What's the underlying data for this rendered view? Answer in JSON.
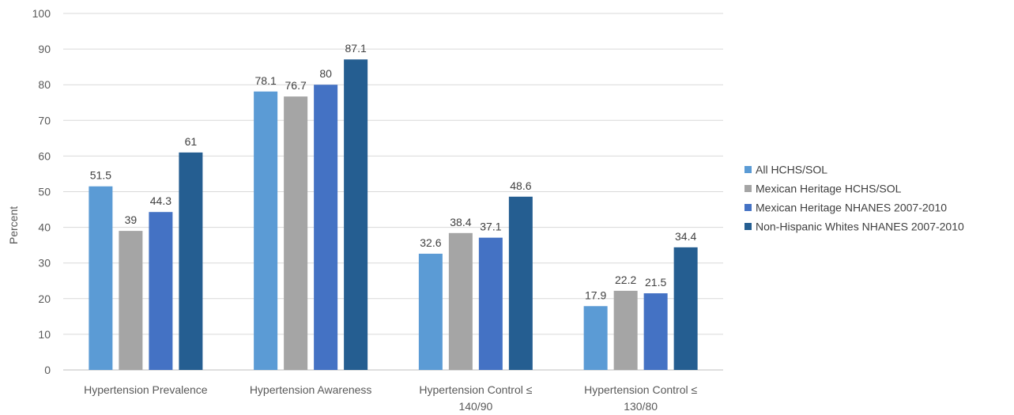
{
  "chart_data": {
    "type": "bar",
    "title": "",
    "xlabel": "",
    "ylabel": "Percent",
    "ylim": [
      0,
      100
    ],
    "yticks": [
      0,
      10,
      20,
      30,
      40,
      50,
      60,
      70,
      80,
      90,
      100
    ],
    "grid": true,
    "legend_position": "right",
    "categories": [
      [
        "Hypertension Prevalence"
      ],
      [
        "Hypertension Awareness"
      ],
      [
        "Hypertension Control ≤",
        "140/90"
      ],
      [
        "Hypertension Control ≤",
        "130/80"
      ]
    ],
    "series": [
      {
        "name": "All HCHS/SOL",
        "color": "#5B9BD5",
        "values": [
          51.5,
          78.1,
          32.6,
          17.9
        ]
      },
      {
        "name": "Mexican Heritage HCHS/SOL",
        "color": "#A5A5A5",
        "values": [
          39,
          76.7,
          38.4,
          22.2
        ]
      },
      {
        "name": "Mexican Heritage NHANES 2007-2010",
        "color": "#4472C4",
        "values": [
          44.3,
          80,
          37.1,
          21.5
        ]
      },
      {
        "name": "Non-Hispanic Whites NHANES 2007-2010",
        "color": "#255E91",
        "values": [
          61,
          87.1,
          48.6,
          34.4
        ]
      }
    ]
  }
}
